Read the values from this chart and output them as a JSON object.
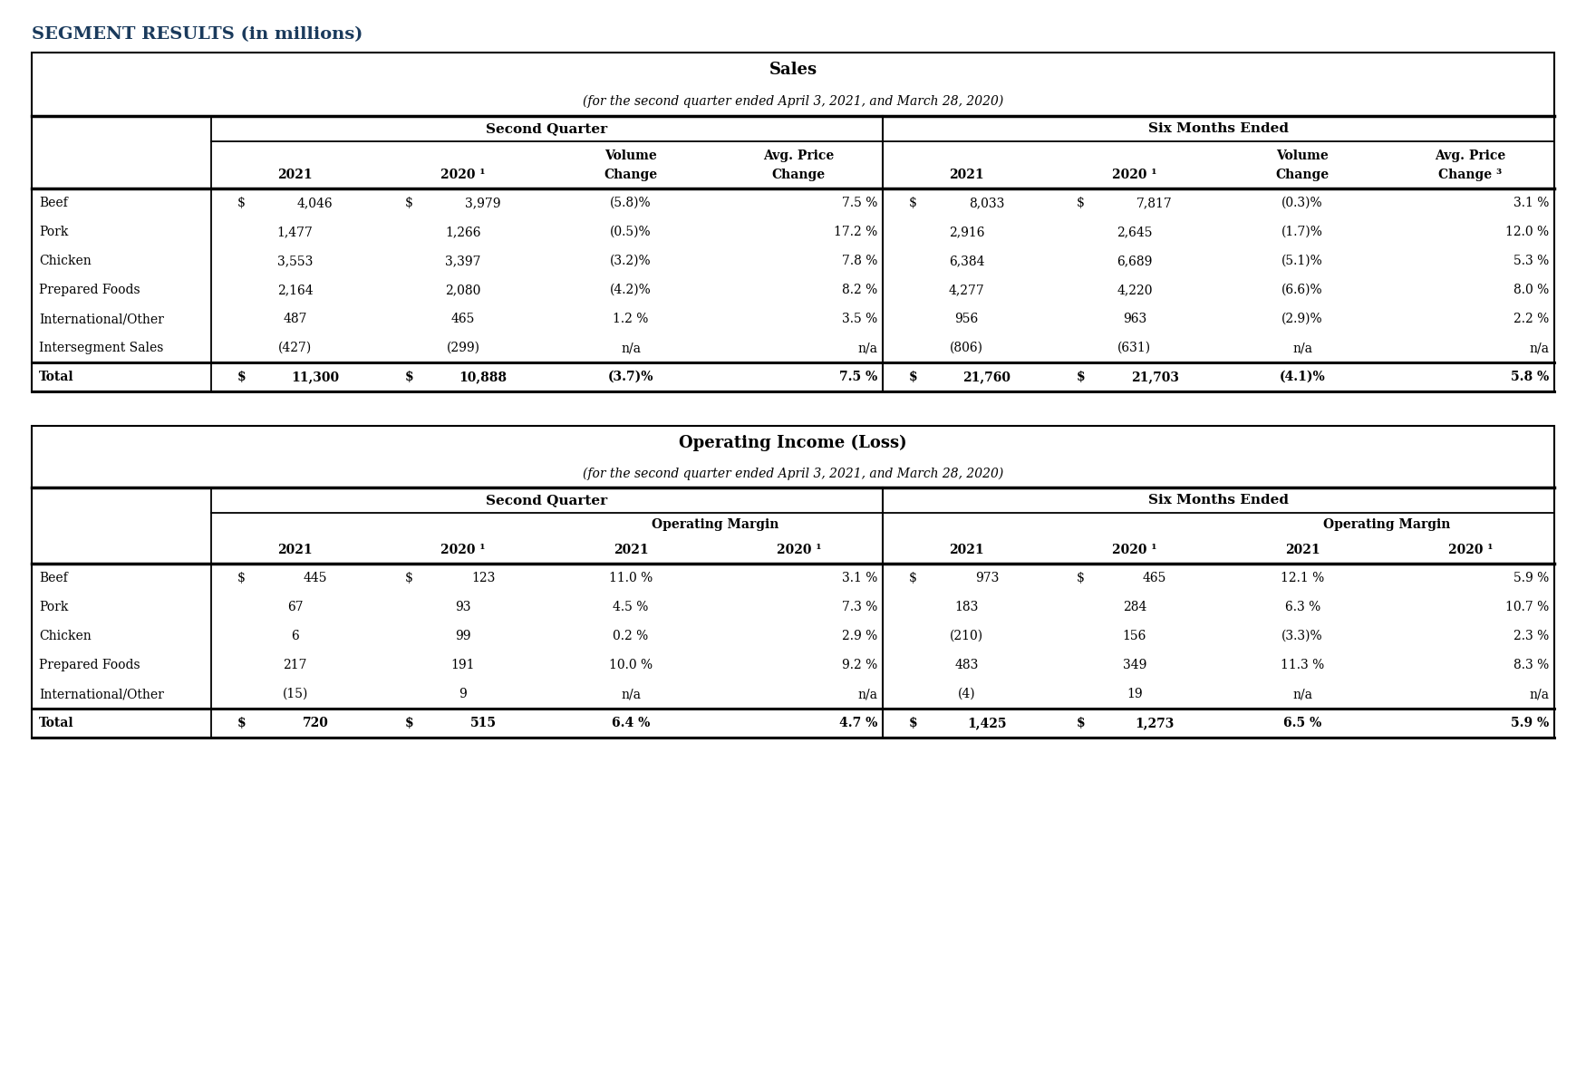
{
  "title_text": "SEGMENT RESULTS (in millions)",
  "title_color": "#1a3a5c",
  "bg_color": "#ffffff",
  "sales_table": {
    "title": "Sales",
    "subtitle": "(for the second quarter ended April 3, 2021, and March 28, 2020)",
    "rows": [
      {
        "label": "Beef",
        "shaded": true,
        "bold": false,
        "q2_2021": "4,046",
        "q2_2020": "3,979",
        "q2_vol": "(5.8)%",
        "q2_price": "7.5 %",
        "s6_2021": "8,033",
        "s6_2020": "7,817",
        "s6_vol": "(0.3)%",
        "s6_price": "3.1 %",
        "q2_dollar": true,
        "s6_dollar": true
      },
      {
        "label": "Pork",
        "shaded": false,
        "bold": false,
        "q2_2021": "1,477",
        "q2_2020": "1,266",
        "q2_vol": "(0.5)%",
        "q2_price": "17.2 %",
        "s6_2021": "2,916",
        "s6_2020": "2,645",
        "s6_vol": "(1.7)%",
        "s6_price": "12.0 %",
        "q2_dollar": false,
        "s6_dollar": false
      },
      {
        "label": "Chicken",
        "shaded": true,
        "bold": false,
        "q2_2021": "3,553",
        "q2_2020": "3,397",
        "q2_vol": "(3.2)%",
        "q2_price": "7.8 %",
        "s6_2021": "6,384",
        "s6_2020": "6,689",
        "s6_vol": "(5.1)%",
        "s6_price": "5.3 %",
        "q2_dollar": false,
        "s6_dollar": false
      },
      {
        "label": "Prepared Foods",
        "shaded": false,
        "bold": false,
        "q2_2021": "2,164",
        "q2_2020": "2,080",
        "q2_vol": "(4.2)%",
        "q2_price": "8.2 %",
        "s6_2021": "4,277",
        "s6_2020": "4,220",
        "s6_vol": "(6.6)%",
        "s6_price": "8.0 %",
        "q2_dollar": false,
        "s6_dollar": false
      },
      {
        "label": "International/Other",
        "shaded": true,
        "bold": false,
        "q2_2021": "487",
        "q2_2020": "465",
        "q2_vol": "1.2 %",
        "q2_price": "3.5 %",
        "s6_2021": "956",
        "s6_2020": "963",
        "s6_vol": "(2.9)%",
        "s6_price": "2.2 %",
        "q2_dollar": false,
        "s6_dollar": false
      },
      {
        "label": "Intersegment Sales",
        "shaded": false,
        "bold": false,
        "q2_2021": "(427)",
        "q2_2020": "(299)",
        "q2_vol": "n/a",
        "q2_price": "n/a",
        "s6_2021": "(806)",
        "s6_2020": "(631)",
        "s6_vol": "n/a",
        "s6_price": "n/a",
        "q2_dollar": false,
        "s6_dollar": false
      },
      {
        "label": "Total",
        "shaded": true,
        "bold": true,
        "q2_2021": "11,300",
        "q2_2020": "10,888",
        "q2_vol": "(3.7)%",
        "q2_price": "7.5 %",
        "s6_2021": "21,760",
        "s6_2020": "21,703",
        "s6_vol": "(4.1)%",
        "s6_price": "5.8 %",
        "q2_dollar": true,
        "s6_dollar": true
      }
    ]
  },
  "oi_table": {
    "title": "Operating Income (Loss)",
    "subtitle": "(for the second quarter ended April 3, 2021, and March 28, 2020)",
    "rows": [
      {
        "label": "Beef",
        "shaded": true,
        "bold": false,
        "q2_2021": "445",
        "q2_2020": "123",
        "q2_m21": "11.0 %",
        "q2_m20": "3.1 %",
        "s6_2021": "973",
        "s6_2020": "465",
        "s6_m21": "12.1 %",
        "s6_m20": "5.9 %",
        "q2_dollar": true,
        "s6_dollar": true
      },
      {
        "label": "Pork",
        "shaded": false,
        "bold": false,
        "q2_2021": "67",
        "q2_2020": "93",
        "q2_m21": "4.5 %",
        "q2_m20": "7.3 %",
        "s6_2021": "183",
        "s6_2020": "284",
        "s6_m21": "6.3 %",
        "s6_m20": "10.7 %",
        "q2_dollar": false,
        "s6_dollar": false
      },
      {
        "label": "Chicken",
        "shaded": true,
        "bold": false,
        "q2_2021": "6",
        "q2_2020": "99",
        "q2_m21": "0.2 %",
        "q2_m20": "2.9 %",
        "s6_2021": "(210)",
        "s6_2020": "156",
        "s6_m21": "(3.3)%",
        "s6_m20": "2.3 %",
        "q2_dollar": false,
        "s6_dollar": false
      },
      {
        "label": "Prepared Foods",
        "shaded": false,
        "bold": false,
        "q2_2021": "217",
        "q2_2020": "191",
        "q2_m21": "10.0 %",
        "q2_m20": "9.2 %",
        "s6_2021": "483",
        "s6_2020": "349",
        "s6_m21": "11.3 %",
        "s6_m20": "8.3 %",
        "q2_dollar": false,
        "s6_dollar": false
      },
      {
        "label": "International/Other",
        "shaded": true,
        "bold": false,
        "q2_2021": "(15)",
        "q2_2020": "9",
        "q2_m21": "n/a",
        "q2_m20": "n/a",
        "s6_2021": "(4)",
        "s6_2020": "19",
        "s6_m21": "n/a",
        "s6_m20": "n/a",
        "q2_dollar": false,
        "s6_dollar": false
      },
      {
        "label": "Total",
        "shaded": true,
        "bold": true,
        "q2_2021": "720",
        "q2_2020": "515",
        "q2_m21": "6.4 %",
        "q2_m20": "4.7 %",
        "s6_2021": "1,425",
        "s6_2020": "1,273",
        "s6_m21": "6.5 %",
        "s6_m20": "5.9 %",
        "q2_dollar": true,
        "s6_dollar": true
      }
    ]
  },
  "shaded_color": "#e8e8e8",
  "text_color": "#000000",
  "title_font_size": 13,
  "header_font_size": 10,
  "data_font_size": 10,
  "label_font_size": 10
}
